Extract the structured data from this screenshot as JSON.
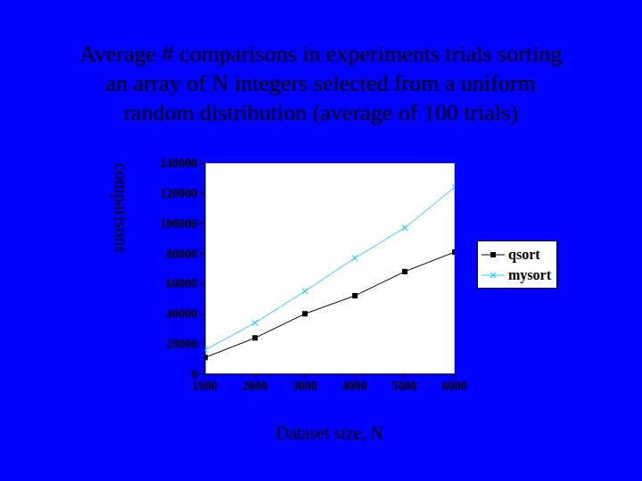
{
  "chart_data": {
    "type": "line",
    "title": "Average # comparisons in experiments trials sorting\nan array of N integers selected from a uniform\nrandom distribution (average of 100 trials)",
    "x_label": "Dataset size, N",
    "y_label": "comparisons",
    "x": [
      1000,
      2000,
      3000,
      4000,
      5000,
      6000
    ],
    "series": [
      {
        "name": "qsort",
        "color": "#000000",
        "marker": "square",
        "values": [
          11000,
          24000,
          40000,
          52000,
          68000,
          81000
        ]
      },
      {
        "name": "mysort",
        "color": "#33ccff",
        "marker": "x",
        "values": [
          16000,
          34000,
          55000,
          77000,
          97000,
          124000
        ]
      }
    ],
    "xlim": [
      1000,
      6000
    ],
    "xticks": [
      1000,
      2000,
      3000,
      4000,
      5000,
      6000
    ],
    "ylim": [
      0,
      140000
    ],
    "yticks": [
      0,
      20000,
      40000,
      60000,
      80000,
      100000,
      120000,
      140000
    ],
    "grid": false,
    "legend": "right"
  }
}
